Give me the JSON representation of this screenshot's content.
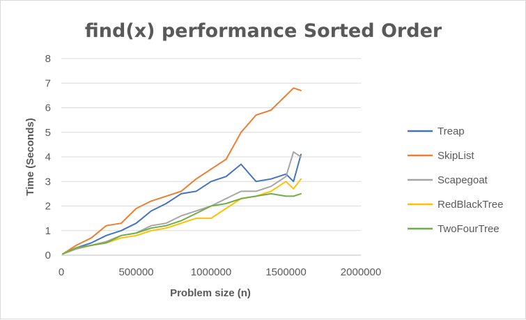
{
  "chart_data": {
    "type": "line",
    "title": "find(x) performance Sorted Order",
    "xlabel": "Problem size (n)",
    "ylabel": "Time (Seconds)",
    "xlim": [
      0,
      2000000
    ],
    "ylim": [
      0,
      8
    ],
    "x_ticks": [
      "0",
      "500000",
      "1000000",
      "1500000",
      "2000000"
    ],
    "y_ticks": [
      "0",
      "1",
      "2",
      "3",
      "4",
      "5",
      "6",
      "7",
      "8"
    ],
    "grid": "horizontal",
    "legend_position": "right",
    "x": [
      10000,
      100000,
      200000,
      300000,
      400000,
      500000,
      600000,
      700000,
      800000,
      900000,
      1000000,
      1100000,
      1200000,
      1300000,
      1400000,
      1500000,
      1550000,
      1600000
    ],
    "series": [
      {
        "name": "Treap",
        "color": "#4472c4",
        "values": [
          0.05,
          0.3,
          0.5,
          0.8,
          1.0,
          1.3,
          1.8,
          2.1,
          2.5,
          2.6,
          3.0,
          3.2,
          3.7,
          3.0,
          3.1,
          3.3,
          3.0,
          4.1
        ]
      },
      {
        "name": "SkipList",
        "color": "#ed7d31",
        "values": [
          0.05,
          0.4,
          0.7,
          1.2,
          1.3,
          1.9,
          2.2,
          2.4,
          2.6,
          3.1,
          3.5,
          3.9,
          5.0,
          5.7,
          5.9,
          6.5,
          6.8,
          6.7
        ]
      },
      {
        "name": "Scapegoat",
        "color": "#a5a5a5",
        "values": [
          0.05,
          0.25,
          0.4,
          0.55,
          0.8,
          0.9,
          1.2,
          1.3,
          1.6,
          1.8,
          2.0,
          2.3,
          2.6,
          2.6,
          2.8,
          3.2,
          4.2,
          4.0
        ]
      },
      {
        "name": "RedBlackTree",
        "color": "#ffc000",
        "values": [
          0.05,
          0.3,
          0.4,
          0.5,
          0.7,
          0.8,
          1.0,
          1.1,
          1.3,
          1.5,
          1.5,
          1.9,
          2.3,
          2.4,
          2.6,
          3.0,
          2.7,
          3.1
        ]
      },
      {
        "name": "TwoFourTree",
        "color": "#70ad47",
        "values": [
          0.05,
          0.3,
          0.4,
          0.5,
          0.8,
          0.9,
          1.1,
          1.2,
          1.4,
          1.7,
          2.0,
          2.1,
          2.3,
          2.4,
          2.5,
          2.4,
          2.4,
          2.5
        ]
      }
    ]
  }
}
